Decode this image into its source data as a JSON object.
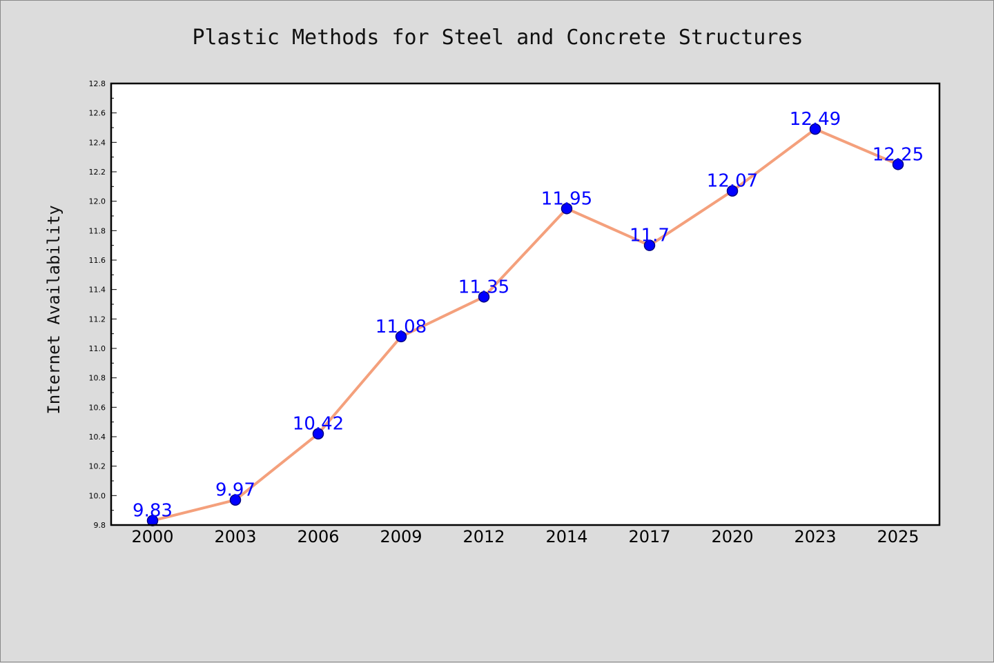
{
  "chart_data": {
    "type": "line",
    "title": "Plastic Methods for Steel and Concrete Structures",
    "xlabel": "",
    "ylabel": "Internet Availability",
    "categories": [
      "2000",
      "2003",
      "2006",
      "2009",
      "2012",
      "2014",
      "2017",
      "2020",
      "2023",
      "2025"
    ],
    "series": [
      {
        "values": [
          9.83,
          9.97,
          10.42,
          11.08,
          11.35,
          11.95,
          11.7,
          12.07,
          12.49,
          12.25
        ],
        "value_labels": [
          "9.83",
          "9.97",
          "10.42",
          "11.08",
          "11.35",
          "11.95",
          "11.7",
          "12.07",
          "12.49",
          "12.25"
        ]
      }
    ],
    "ylim": [
      9.8,
      12.8
    ],
    "yticks": [
      "9.8",
      "10.0",
      "10.2",
      "10.4",
      "10.6",
      "10.8",
      "11.0",
      "11.2",
      "11.4",
      "11.6",
      "11.8",
      "12.0",
      "12.2",
      "12.4",
      "12.6",
      "12.8"
    ],
    "grid": false,
    "legend": "none",
    "colors": {
      "line": "#f4a07c",
      "marker_fill": "#0000ff",
      "marker_edge": "#000080",
      "data_label": "#0000ff",
      "plot_background": "#ffffff",
      "figure_background": "#dcdcdc",
      "axes_frame": "#000000"
    }
  }
}
